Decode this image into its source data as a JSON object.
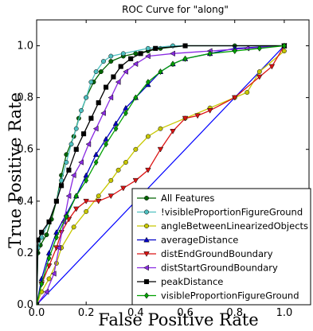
{
  "chart_data": {
    "type": "line",
    "title": "ROC Curve for \"along\"",
    "xlabel": "False Positive Rate",
    "ylabel": "True Positive Rate",
    "xlim": [
      0,
      1.1
    ],
    "ylim": [
      0,
      1.1
    ],
    "xticks": [
      "0.0",
      "0.2",
      "0.4",
      "0.6",
      "0.8",
      "1.0"
    ],
    "yticks": [
      "0.0",
      "0.2",
      "0.4",
      "0.6",
      "0.8",
      "1.0"
    ],
    "legend_position": "bottom-right",
    "diagonal_color": "#0000ff",
    "series": [
      {
        "name": "All Features",
        "color": "#006400",
        "marker": "circle",
        "points": [
          [
            0,
            0
          ],
          [
            0.005,
            0.2
          ],
          [
            0.015,
            0.23
          ],
          [
            0.04,
            0.27
          ],
          [
            0.06,
            0.33
          ],
          [
            0.08,
            0.4
          ],
          [
            0.1,
            0.5
          ],
          [
            0.12,
            0.58
          ],
          [
            0.15,
            0.65
          ],
          [
            0.17,
            0.72
          ],
          [
            0.2,
            0.8
          ],
          [
            0.23,
            0.86
          ],
          [
            0.26,
            0.9
          ],
          [
            0.3,
            0.94
          ],
          [
            0.35,
            0.96
          ],
          [
            0.4,
            0.97
          ],
          [
            0.45,
            0.98
          ],
          [
            0.5,
            0.99
          ],
          [
            0.6,
            1.0
          ],
          [
            0.8,
            1.0
          ],
          [
            1.0,
            1.0
          ]
        ]
      },
      {
        "name": "!visibleProportionFigureGround",
        "color": "#4fc0c0",
        "marker": "circle",
        "points": [
          [
            0,
            0
          ],
          [
            0.005,
            0.22
          ],
          [
            0.02,
            0.26
          ],
          [
            0.05,
            0.32
          ],
          [
            0.08,
            0.4
          ],
          [
            0.1,
            0.48
          ],
          [
            0.12,
            0.55
          ],
          [
            0.14,
            0.62
          ],
          [
            0.16,
            0.68
          ],
          [
            0.18,
            0.75
          ],
          [
            0.2,
            0.8
          ],
          [
            0.22,
            0.86
          ],
          [
            0.24,
            0.9
          ],
          [
            0.27,
            0.94
          ],
          [
            0.3,
            0.96
          ],
          [
            0.35,
            0.97
          ],
          [
            0.45,
            0.99
          ],
          [
            0.55,
            1.0
          ],
          [
            1.0,
            1.0
          ]
        ]
      },
      {
        "name": "angleBetweenLinearizedObjects",
        "color": "#c8c800",
        "marker": "circle",
        "points": [
          [
            0,
            0
          ],
          [
            0.02,
            0.05
          ],
          [
            0.05,
            0.1
          ],
          [
            0.08,
            0.16
          ],
          [
            0.1,
            0.22
          ],
          [
            0.15,
            0.3
          ],
          [
            0.2,
            0.36
          ],
          [
            0.25,
            0.42
          ],
          [
            0.3,
            0.48
          ],
          [
            0.33,
            0.52
          ],
          [
            0.36,
            0.55
          ],
          [
            0.4,
            0.6
          ],
          [
            0.45,
            0.65
          ],
          [
            0.5,
            0.68
          ],
          [
            0.6,
            0.72
          ],
          [
            0.7,
            0.76
          ],
          [
            0.8,
            0.8
          ],
          [
            0.85,
            0.82
          ],
          [
            0.9,
            0.9
          ],
          [
            1.0,
            0.98
          ]
        ]
      },
      {
        "name": "averageDistance",
        "color": "#0000c8",
        "marker": "triangle-up",
        "points": [
          [
            0,
            0
          ],
          [
            0.02,
            0.1
          ],
          [
            0.05,
            0.2
          ],
          [
            0.08,
            0.28
          ],
          [
            0.12,
            0.35
          ],
          [
            0.16,
            0.42
          ],
          [
            0.2,
            0.5
          ],
          [
            0.24,
            0.58
          ],
          [
            0.28,
            0.64
          ],
          [
            0.32,
            0.7
          ],
          [
            0.36,
            0.76
          ],
          [
            0.4,
            0.8
          ],
          [
            0.45,
            0.85
          ],
          [
            0.5,
            0.9
          ],
          [
            0.55,
            0.93
          ],
          [
            0.6,
            0.95
          ],
          [
            0.7,
            0.97
          ],
          [
            0.8,
            0.99
          ],
          [
            1.0,
            1.0
          ]
        ]
      },
      {
        "name": "distEndGroundBoundary",
        "color": "#dc1414",
        "marker": "triangle-down",
        "points": [
          [
            0,
            0
          ],
          [
            0.02,
            0.08
          ],
          [
            0.05,
            0.15
          ],
          [
            0.08,
            0.22
          ],
          [
            0.1,
            0.28
          ],
          [
            0.13,
            0.33
          ],
          [
            0.16,
            0.37
          ],
          [
            0.2,
            0.4
          ],
          [
            0.25,
            0.4
          ],
          [
            0.3,
            0.42
          ],
          [
            0.35,
            0.45
          ],
          [
            0.4,
            0.48
          ],
          [
            0.45,
            0.52
          ],
          [
            0.5,
            0.6
          ],
          [
            0.55,
            0.67
          ],
          [
            0.6,
            0.72
          ],
          [
            0.65,
            0.73
          ],
          [
            0.7,
            0.75
          ],
          [
            0.8,
            0.8
          ],
          [
            0.9,
            0.88
          ],
          [
            0.95,
            0.92
          ],
          [
            1.0,
            1.0
          ]
        ]
      },
      {
        "name": "distStartGroundBoundary",
        "color": "#8a2be2",
        "marker": "triangle-left",
        "points": [
          [
            0,
            0
          ],
          [
            0.04,
            0.05
          ],
          [
            0.07,
            0.12
          ],
          [
            0.09,
            0.22
          ],
          [
            0.11,
            0.32
          ],
          [
            0.13,
            0.42
          ],
          [
            0.15,
            0.5
          ],
          [
            0.18,
            0.55
          ],
          [
            0.21,
            0.62
          ],
          [
            0.24,
            0.68
          ],
          [
            0.27,
            0.74
          ],
          [
            0.3,
            0.8
          ],
          [
            0.33,
            0.86
          ],
          [
            0.36,
            0.9
          ],
          [
            0.4,
            0.93
          ],
          [
            0.45,
            0.96
          ],
          [
            0.55,
            0.97
          ],
          [
            0.7,
            0.98
          ],
          [
            0.85,
            0.99
          ],
          [
            1.0,
            1.0
          ]
        ]
      },
      {
        "name": "peakDistance",
        "color": "#000000",
        "marker": "square",
        "points": [
          [
            0,
            0
          ],
          [
            0.005,
            0.25
          ],
          [
            0.02,
            0.28
          ],
          [
            0.05,
            0.32
          ],
          [
            0.08,
            0.4
          ],
          [
            0.1,
            0.46
          ],
          [
            0.13,
            0.52
          ],
          [
            0.16,
            0.6
          ],
          [
            0.19,
            0.66
          ],
          [
            0.22,
            0.72
          ],
          [
            0.25,
            0.78
          ],
          [
            0.28,
            0.84
          ],
          [
            0.31,
            0.88
          ],
          [
            0.34,
            0.92
          ],
          [
            0.38,
            0.95
          ],
          [
            0.42,
            0.97
          ],
          [
            0.48,
            0.99
          ],
          [
            0.6,
            1.0
          ],
          [
            1.0,
            1.0
          ]
        ]
      },
      {
        "name": "visibleProportionFigureGround",
        "color": "#00a000",
        "marker": "diamond",
        "points": [
          [
            0,
            0
          ],
          [
            0.02,
            0.08
          ],
          [
            0.05,
            0.18
          ],
          [
            0.08,
            0.26
          ],
          [
            0.12,
            0.34
          ],
          [
            0.16,
            0.42
          ],
          [
            0.2,
            0.48
          ],
          [
            0.24,
            0.55
          ],
          [
            0.28,
            0.62
          ],
          [
            0.32,
            0.68
          ],
          [
            0.36,
            0.74
          ],
          [
            0.4,
            0.8
          ],
          [
            0.45,
            0.86
          ],
          [
            0.5,
            0.9
          ],
          [
            0.55,
            0.93
          ],
          [
            0.6,
            0.95
          ],
          [
            0.7,
            0.97
          ],
          [
            0.8,
            0.98
          ],
          [
            0.9,
            0.99
          ],
          [
            1.0,
            1.0
          ]
        ]
      }
    ]
  }
}
